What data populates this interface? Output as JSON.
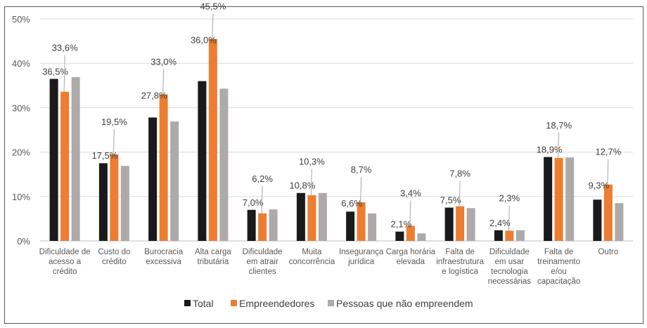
{
  "chart_data": {
    "type": "bar",
    "title": "",
    "xlabel": "",
    "ylabel": "",
    "ylim": [
      0,
      50
    ],
    "yticks": [
      "0%",
      "10%",
      "20%",
      "30%",
      "40%",
      "50%"
    ],
    "grid": true,
    "legend_position": "bottom",
    "categories": [
      [
        "Dificuldade de",
        "acesso a",
        "crédito"
      ],
      [
        "Custo do",
        "crédito"
      ],
      [
        "Burocracia",
        "excessiva"
      ],
      [
        "Alta carga",
        "tributária"
      ],
      [
        "Dificuldade",
        "em atrair",
        "clientes"
      ],
      [
        "Muita",
        "concorrência"
      ],
      [
        "Insegurança",
        "jurídica"
      ],
      [
        "Carga horária",
        "elevada"
      ],
      [
        "Falta de",
        "infraestrutura",
        "e logística"
      ],
      [
        "Dificuldade",
        "em usar",
        "tecnologia",
        "necessárias"
      ],
      [
        "Falta de",
        "treinamento",
        "e/ou",
        "capacitação"
      ],
      [
        "Outro"
      ]
    ],
    "series": [
      {
        "name": "Total",
        "color": "#1a1a1a",
        "values": [
          36.5,
          17.5,
          27.8,
          36.0,
          7.0,
          10.8,
          6.6,
          2.1,
          7.5,
          2.4,
          18.9,
          9.3
        ],
        "labels": [
          "36,5%",
          "17,5%",
          "27,8%",
          "36,0%",
          "7,0%",
          "10,8%",
          "6,6%",
          "2,1%",
          "7,5%",
          "2,4%",
          "18,9%",
          "9,3%"
        ]
      },
      {
        "name": "Empreendedores",
        "color": "#ed7d31",
        "values": [
          33.6,
          19.5,
          33.0,
          45.5,
          6.2,
          10.3,
          8.7,
          3.4,
          7.8,
          2.3,
          18.7,
          12.7
        ],
        "labels": [
          "33,6%",
          "19,5%",
          "33,0%",
          "45,5%",
          "6,2%",
          "10,3%",
          "8,7%",
          "3,4%",
          "7,8%",
          "2,3%",
          "18,7%",
          "12,7%"
        ]
      },
      {
        "name": "Pessoas que não empreendem",
        "color": "#aeaaaa",
        "values": [
          36.9,
          16.9,
          26.9,
          34.3,
          7.1,
          10.8,
          6.2,
          1.7,
          7.4,
          2.4,
          18.8,
          8.5
        ],
        "labels": null
      }
    ]
  }
}
